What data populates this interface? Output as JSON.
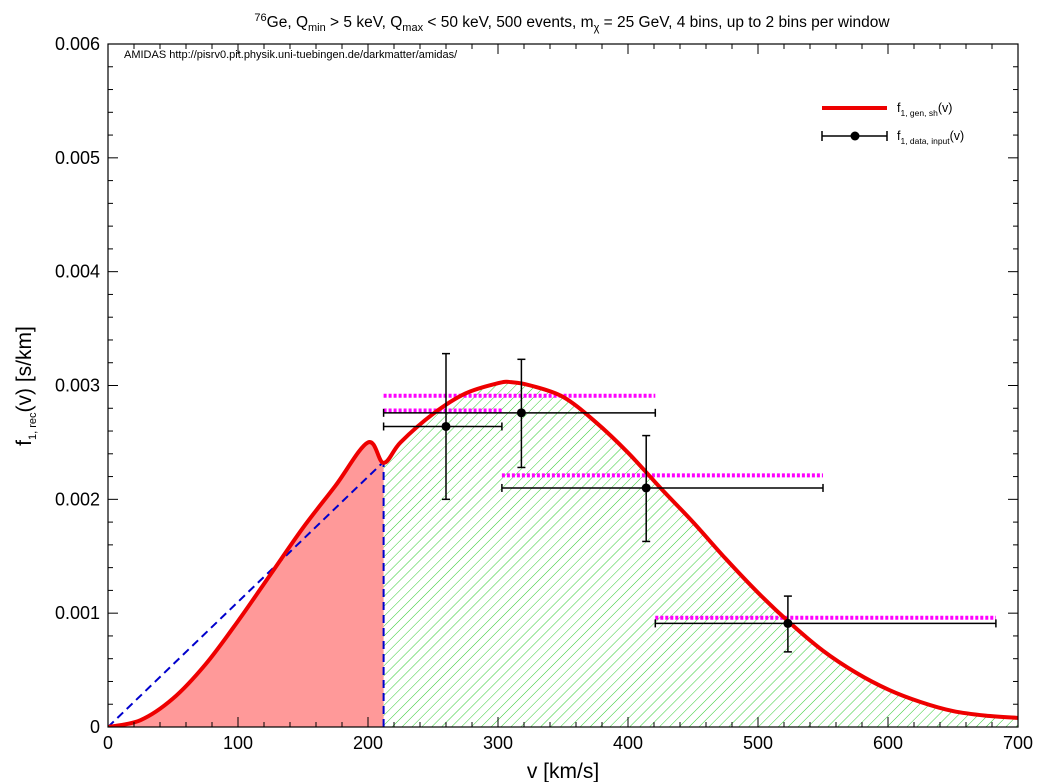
{
  "chart_data": {
    "type": "line",
    "title": {
      "sup": "76",
      "text1": "Ge, Q",
      "sub1": "min",
      "text2": " > 5 keV, Q",
      "sub2": "max",
      "text3": " < 50 keV, 500 events, m",
      "sub3": "χ",
      "text4": " = 25 GeV, 4 bins, up to 2 bins per window"
    },
    "credit": "AMIDAS   http://pisrv0.pit.physik.uni-tuebingen.de/darkmatter/amidas/",
    "xlabel": "v [km/s]",
    "ylabel": {
      "text1": "f",
      "sub": "1, rec",
      "text2": "(v) [s/km]"
    },
    "xlim": [
      0,
      700
    ],
    "ylim": [
      0,
      0.006
    ],
    "xticks": [
      "0",
      "100",
      "200",
      "300",
      "400",
      "500",
      "600",
      "700"
    ],
    "yticks": [
      "0",
      "0.001",
      "0.002",
      "0.003",
      "0.004",
      "0.005",
      "0.006"
    ],
    "legend_position": "top-right",
    "legend": [
      {
        "text": "f",
        "sub": "1, gen, sh",
        "suffix": "(v)",
        "kind": "line",
        "color": "#ee0000"
      },
      {
        "text": "f",
        "sub": "1, data, input",
        "suffix": "(v)",
        "kind": "errorbar",
        "color": "#000000"
      }
    ],
    "curve": {
      "name": "f1, gen, sh(v)",
      "color": "#ee0000",
      "x": [
        0,
        25,
        50,
        75,
        100,
        125,
        150,
        175,
        200,
        212,
        225,
        250,
        275,
        300,
        310,
        325,
        350,
        375,
        400,
        425,
        450,
        475,
        500,
        525,
        550,
        575,
        600,
        625,
        650,
        675,
        700
      ],
      "y": [
        0,
        6e-05,
        0.00025,
        0.00055,
        0.00093,
        0.00134,
        0.00175,
        0.00212,
        0.0025,
        0.00232,
        0.0025,
        0.00275,
        0.00293,
        0.00302,
        0.00303,
        0.003,
        0.0029,
        0.00268,
        0.00241,
        0.0021,
        0.0018,
        0.00148,
        0.00118,
        0.00091,
        0.00067,
        0.00048,
        0.00033,
        0.00022,
        0.00014,
        0.0001,
        8e-05
      ]
    },
    "threshold_v": 212,
    "shaded_below_threshold_color": "#ff9999",
    "hatched_above_threshold_color": "#33cc33",
    "dashed_line": {
      "color": "#0000cc",
      "from": [
        0,
        0
      ],
      "to": [
        212,
        0.00233
      ]
    },
    "data_points": [
      {
        "x": 260,
        "y": 0.00264,
        "xerr": [
          212,
          303
        ],
        "yerr": [
          0.002,
          0.00328
        ]
      },
      {
        "x": 318,
        "y": 0.00276,
        "xerr": [
          212,
          421
        ],
        "yerr": [
          0.00228,
          0.00323
        ]
      },
      {
        "x": 414,
        "y": 0.0021,
        "xerr": [
          303,
          550
        ],
        "yerr": [
          0.00163,
          0.00256
        ]
      },
      {
        "x": 523,
        "y": 0.00091,
        "xerr": [
          421,
          683
        ],
        "yerr": [
          0.00066,
          0.00115
        ]
      }
    ],
    "bin_bands": {
      "color": "#ff00ff",
      "segments": [
        {
          "x1": 212,
          "x2": 421,
          "y": 0.00291
        },
        {
          "x1": 212,
          "x2": 303,
          "y": 0.00278
        },
        {
          "x1": 303,
          "x2": 550,
          "y": 0.00221
        },
        {
          "x1": 421,
          "x2": 683,
          "y": 0.00096
        }
      ]
    }
  }
}
